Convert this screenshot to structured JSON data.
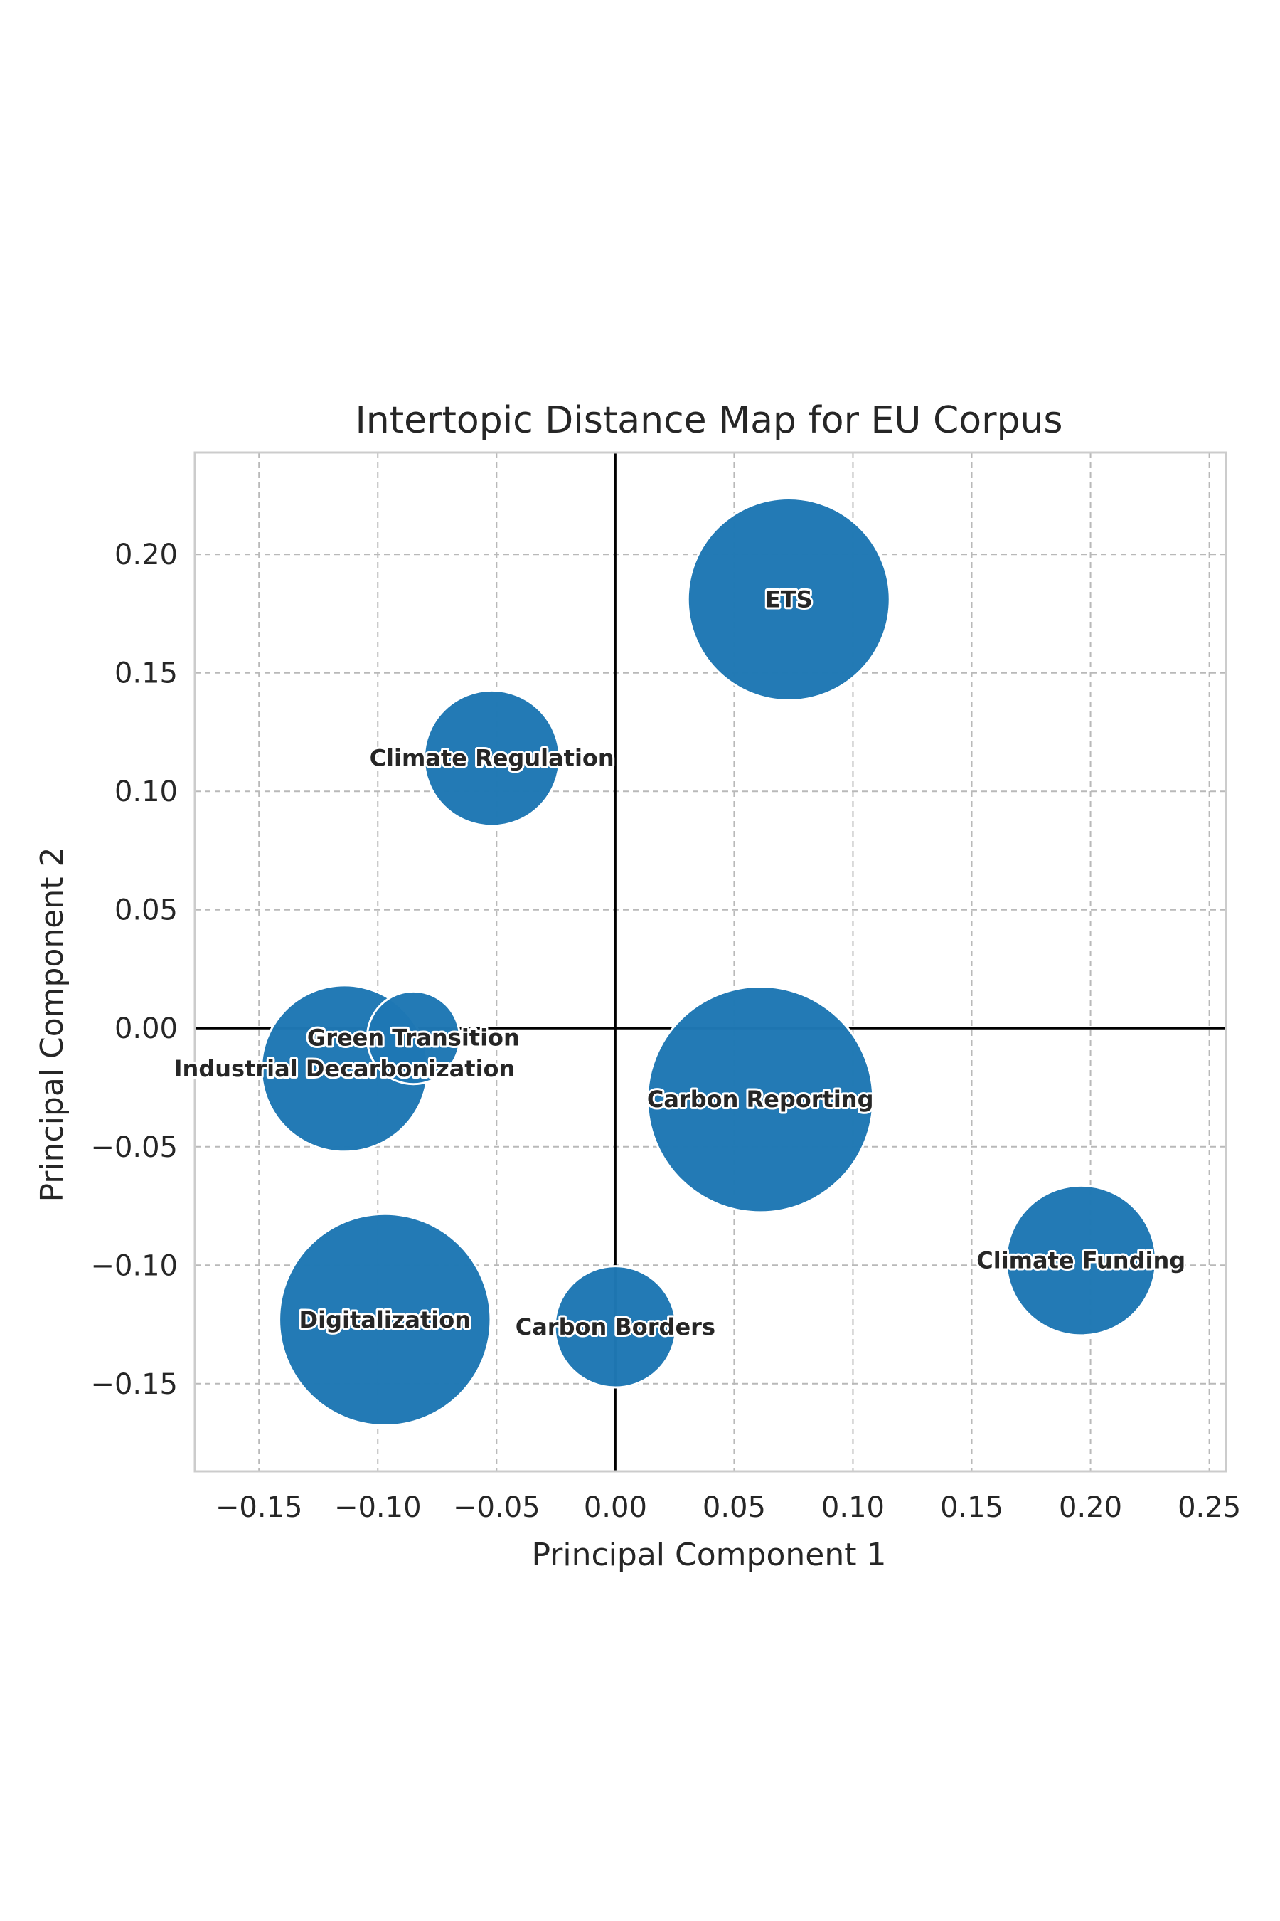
{
  "chart_data": {
    "type": "scatter",
    "variant": "bubble",
    "title": "Intertopic Distance Map for EU Corpus",
    "xlabel": "Principal Component 1",
    "ylabel": "Principal Component 2",
    "xlim": [
      -0.177,
      0.257
    ],
    "ylim": [
      -0.187,
      0.243
    ],
    "xticks": [
      -0.15,
      -0.1,
      -0.05,
      0.0,
      0.05,
      0.1,
      0.15,
      0.2,
      0.25
    ],
    "xtick_labels": [
      "−0.15",
      "−0.10",
      "−0.05",
      "0.00",
      "0.05",
      "0.10",
      "0.15",
      "0.20",
      "0.25"
    ],
    "yticks": [
      -0.15,
      -0.1,
      -0.05,
      0.0,
      0.05,
      0.1,
      0.15,
      0.2
    ],
    "ytick_labels": [
      "−0.15",
      "−0.10",
      "−0.05",
      "0.00",
      "0.05",
      "0.10",
      "0.15",
      "0.20"
    ],
    "grid": true,
    "zero_lines": true,
    "bubble_color": "#1f77b4",
    "points": [
      {
        "label": "ETS",
        "x": 0.073,
        "y": 0.181,
        "r": 0.0425
      },
      {
        "label": "Climate Regulation",
        "x": -0.052,
        "y": 0.114,
        "r": 0.0285
      },
      {
        "label": "Industrial Decarbonization",
        "x": -0.114,
        "y": -0.017,
        "r": 0.035
      },
      {
        "label": "Green Transition",
        "x": -0.085,
        "y": -0.004,
        "r": 0.0195
      },
      {
        "label": "Carbon Reporting",
        "x": 0.061,
        "y": -0.03,
        "r": 0.0475
      },
      {
        "label": "Climate Funding",
        "x": 0.196,
        "y": -0.098,
        "r": 0.0315
      },
      {
        "label": "Digitalization",
        "x": -0.097,
        "y": -0.123,
        "r": 0.0445
      },
      {
        "label": "Carbon Borders",
        "x": 0.0,
        "y": -0.126,
        "r": 0.0255
      }
    ]
  }
}
